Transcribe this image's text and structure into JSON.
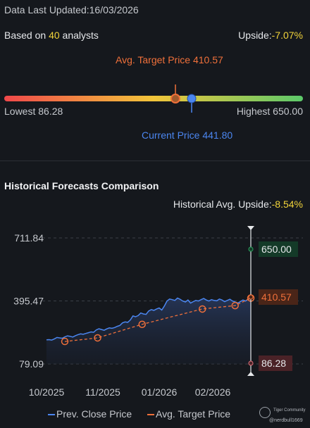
{
  "header": {
    "updated_label": "Data Last Updated:",
    "updated_value": "16/03/2026",
    "analysts_prefix": "Based on ",
    "analysts_count": "40",
    "analysts_suffix": " analysts",
    "upside_label": "Upside:",
    "upside_value": "-7.07%"
  },
  "range": {
    "target_label": "Avg. Target Price 410.57",
    "current_label": "Current Price 441.80",
    "lowest_label": "Lowest 86.28",
    "highest_label": "Highest 650.00",
    "low": 86.28,
    "high": 650.0,
    "target": 410.57,
    "current": 441.8,
    "colors": {
      "red": "#f0484a",
      "yellow": "#f2c53a",
      "green": "#5cc96a",
      "target": "#f0703a",
      "current": "#4b86f0"
    }
  },
  "history": {
    "title": "Historical Forecasts Comparison",
    "upside_label": "Historical Avg. Upside:",
    "upside_value": "-8.54%"
  },
  "chart_data": {
    "type": "line",
    "y_ticks": [
      "711.84",
      "395.47",
      "79.09"
    ],
    "ylim": [
      79.09,
      711.84
    ],
    "x_ticks": [
      "10/2025",
      "11/2025",
      "01/2026",
      "02/2026"
    ],
    "series": [
      {
        "name": "Prev. Close Price",
        "color": "#4b86f0",
        "x": [
          0,
          2,
          4,
          6,
          8,
          10,
          12,
          14,
          16,
          18,
          20,
          22,
          24,
          26,
          28,
          30,
          32,
          34,
          36,
          38,
          40,
          42,
          44,
          46,
          48,
          50,
          52,
          54,
          56,
          58,
          60,
          62,
          64,
          66,
          68,
          70,
          72,
          74,
          76,
          78,
          80,
          82,
          84,
          86,
          88,
          90,
          92,
          94,
          96,
          98,
          100,
          102,
          104,
          106,
          108,
          110,
          112,
          114,
          116,
          118,
          120,
          122,
          124,
          126,
          128,
          130,
          132,
          134,
          136,
          138,
          140,
          142,
          144,
          146,
          148,
          150,
          152,
          154,
          156
        ],
        "values": [
          200,
          201,
          199,
          205,
          212,
          210,
          208,
          215,
          220,
          218,
          214,
          221,
          226,
          230,
          228,
          232,
          236,
          240,
          238,
          250,
          256,
          252,
          248,
          255,
          260,
          258,
          262,
          268,
          272,
          285,
          290,
          288,
          300,
          320,
          316,
          322,
          335,
          330,
          328,
          345,
          352,
          348,
          355,
          360,
          350,
          370,
          395,
          405,
          402,
          398,
          410,
          404,
          395,
          390,
          400,
          385,
          392,
          398,
          395,
          402,
          408,
          400,
          395,
          402,
          398,
          396,
          405,
          400,
          392,
          398,
          404,
          395,
          390,
          385,
          392,
          400,
          395,
          405,
          410
        ]
      },
      {
        "name": "Avg. Target Price",
        "color": "#f0703a",
        "x": [
          14,
          39,
          73,
          119,
          144,
          156
        ],
        "values": [
          192,
          210,
          278,
          355,
          372,
          410
        ]
      }
    ],
    "point_x_start_label": "10/2025",
    "markers": [
      {
        "label": "650.00",
        "value": 650.0,
        "color": "#2aa35f",
        "bg": "#143a28"
      },
      {
        "label": "410.57",
        "value": 410.57,
        "color": "#f0703a",
        "bg": "#4a2518"
      },
      {
        "label": "86.28",
        "value": 86.28,
        "color": "#e0707a",
        "bg": "#4a2227"
      }
    ]
  },
  "legend": {
    "close_label": "Prev. Close Price",
    "target_label": "Avg. Target Price"
  },
  "brand": {
    "name": "Tiger Community",
    "user": "@nerdbull1669"
  }
}
